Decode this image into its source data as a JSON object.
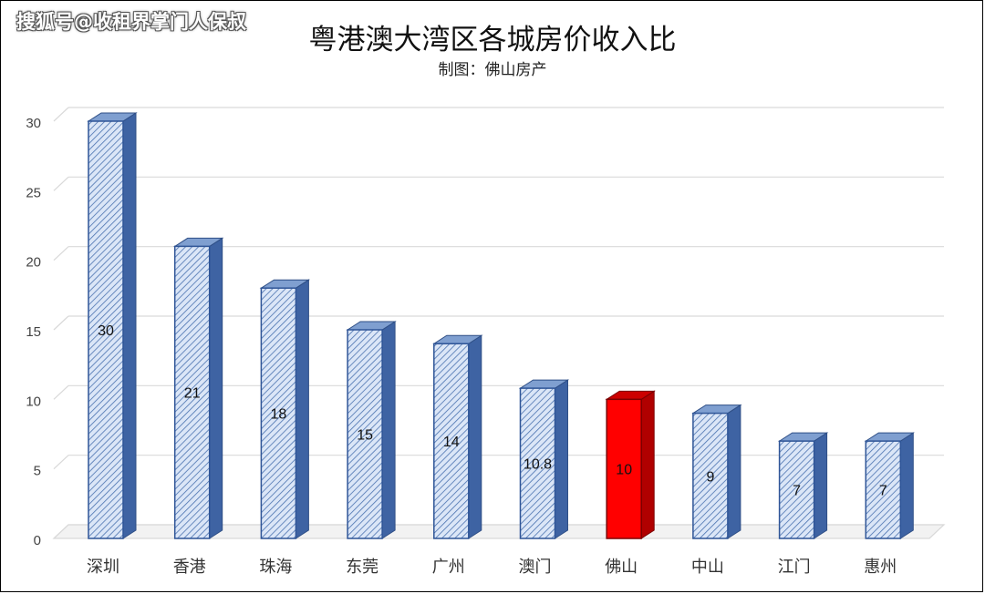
{
  "watermark": "搜狐号@收租界掌门人保叔",
  "chart_data": {
    "type": "bar",
    "title": "粤港澳大湾区各城房价收入比",
    "subtitle": "制图：佛山房产",
    "categories": [
      "深圳",
      "香港",
      "珠海",
      "东莞",
      "广州",
      "澳门",
      "佛山",
      "中山",
      "江门",
      "惠州"
    ],
    "values": [
      30,
      21,
      18,
      15,
      14,
      10.8,
      10,
      9,
      7,
      7
    ],
    "data_labels": [
      "30",
      "21",
      "18",
      "15",
      "14",
      "10.8",
      "10",
      "9",
      "7",
      "7"
    ],
    "highlight_category": "佛山",
    "ylim": [
      0,
      30
    ],
    "yticks": [
      0,
      5,
      10,
      15,
      20,
      25,
      30
    ],
    "grid": true,
    "legend": "none",
    "colors": {
      "bar_fill": "#dbe6f7",
      "bar_hatch": "#4a72b0",
      "bar_side": "#3e63a3",
      "bar_top": "#7f9fd0",
      "highlight_fill": "#ff0000",
      "highlight_side": "#b00000",
      "highlight_top": "#cc0000",
      "grid": "#d9d9d9"
    }
  }
}
